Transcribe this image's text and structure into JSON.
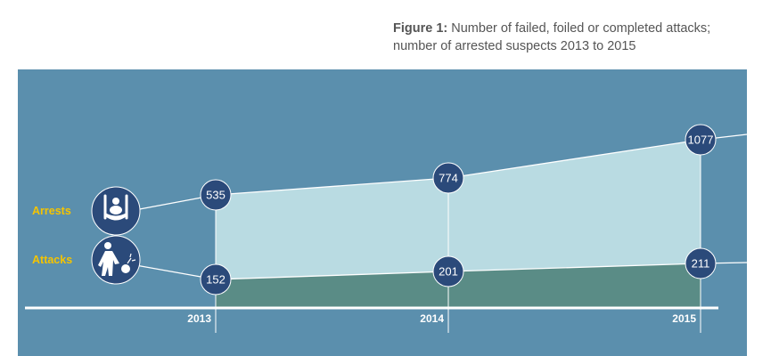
{
  "caption": {
    "label": "Figure 1:",
    "text_line1": "Number of failed, foiled or completed attacks;",
    "text_line2": "number of arrested suspects 2013 to 2015"
  },
  "colors": {
    "panel": "#5b8fad",
    "arrests_fill": "#b9dbe2",
    "attacks_fill": "#5a8c86",
    "marker": "#2b4a7a",
    "series_label": "#f5c400",
    "baseline": "#ffffff"
  },
  "chart_data": {
    "type": "area",
    "title": "Number of failed, foiled or completed attacks; number of arrested suspects 2013 to 2015",
    "categories": [
      "2013",
      "2014",
      "2015"
    ],
    "series": [
      {
        "name": "Arrests",
        "icon": "handcuffs-icon",
        "values": [
          535,
          774,
          1077
        ]
      },
      {
        "name": "Attacks",
        "icon": "bomb-thrower-icon",
        "values": [
          152,
          201,
          211
        ]
      }
    ],
    "ylim": [
      0,
      1100
    ],
    "grid": false,
    "legend": "left"
  }
}
